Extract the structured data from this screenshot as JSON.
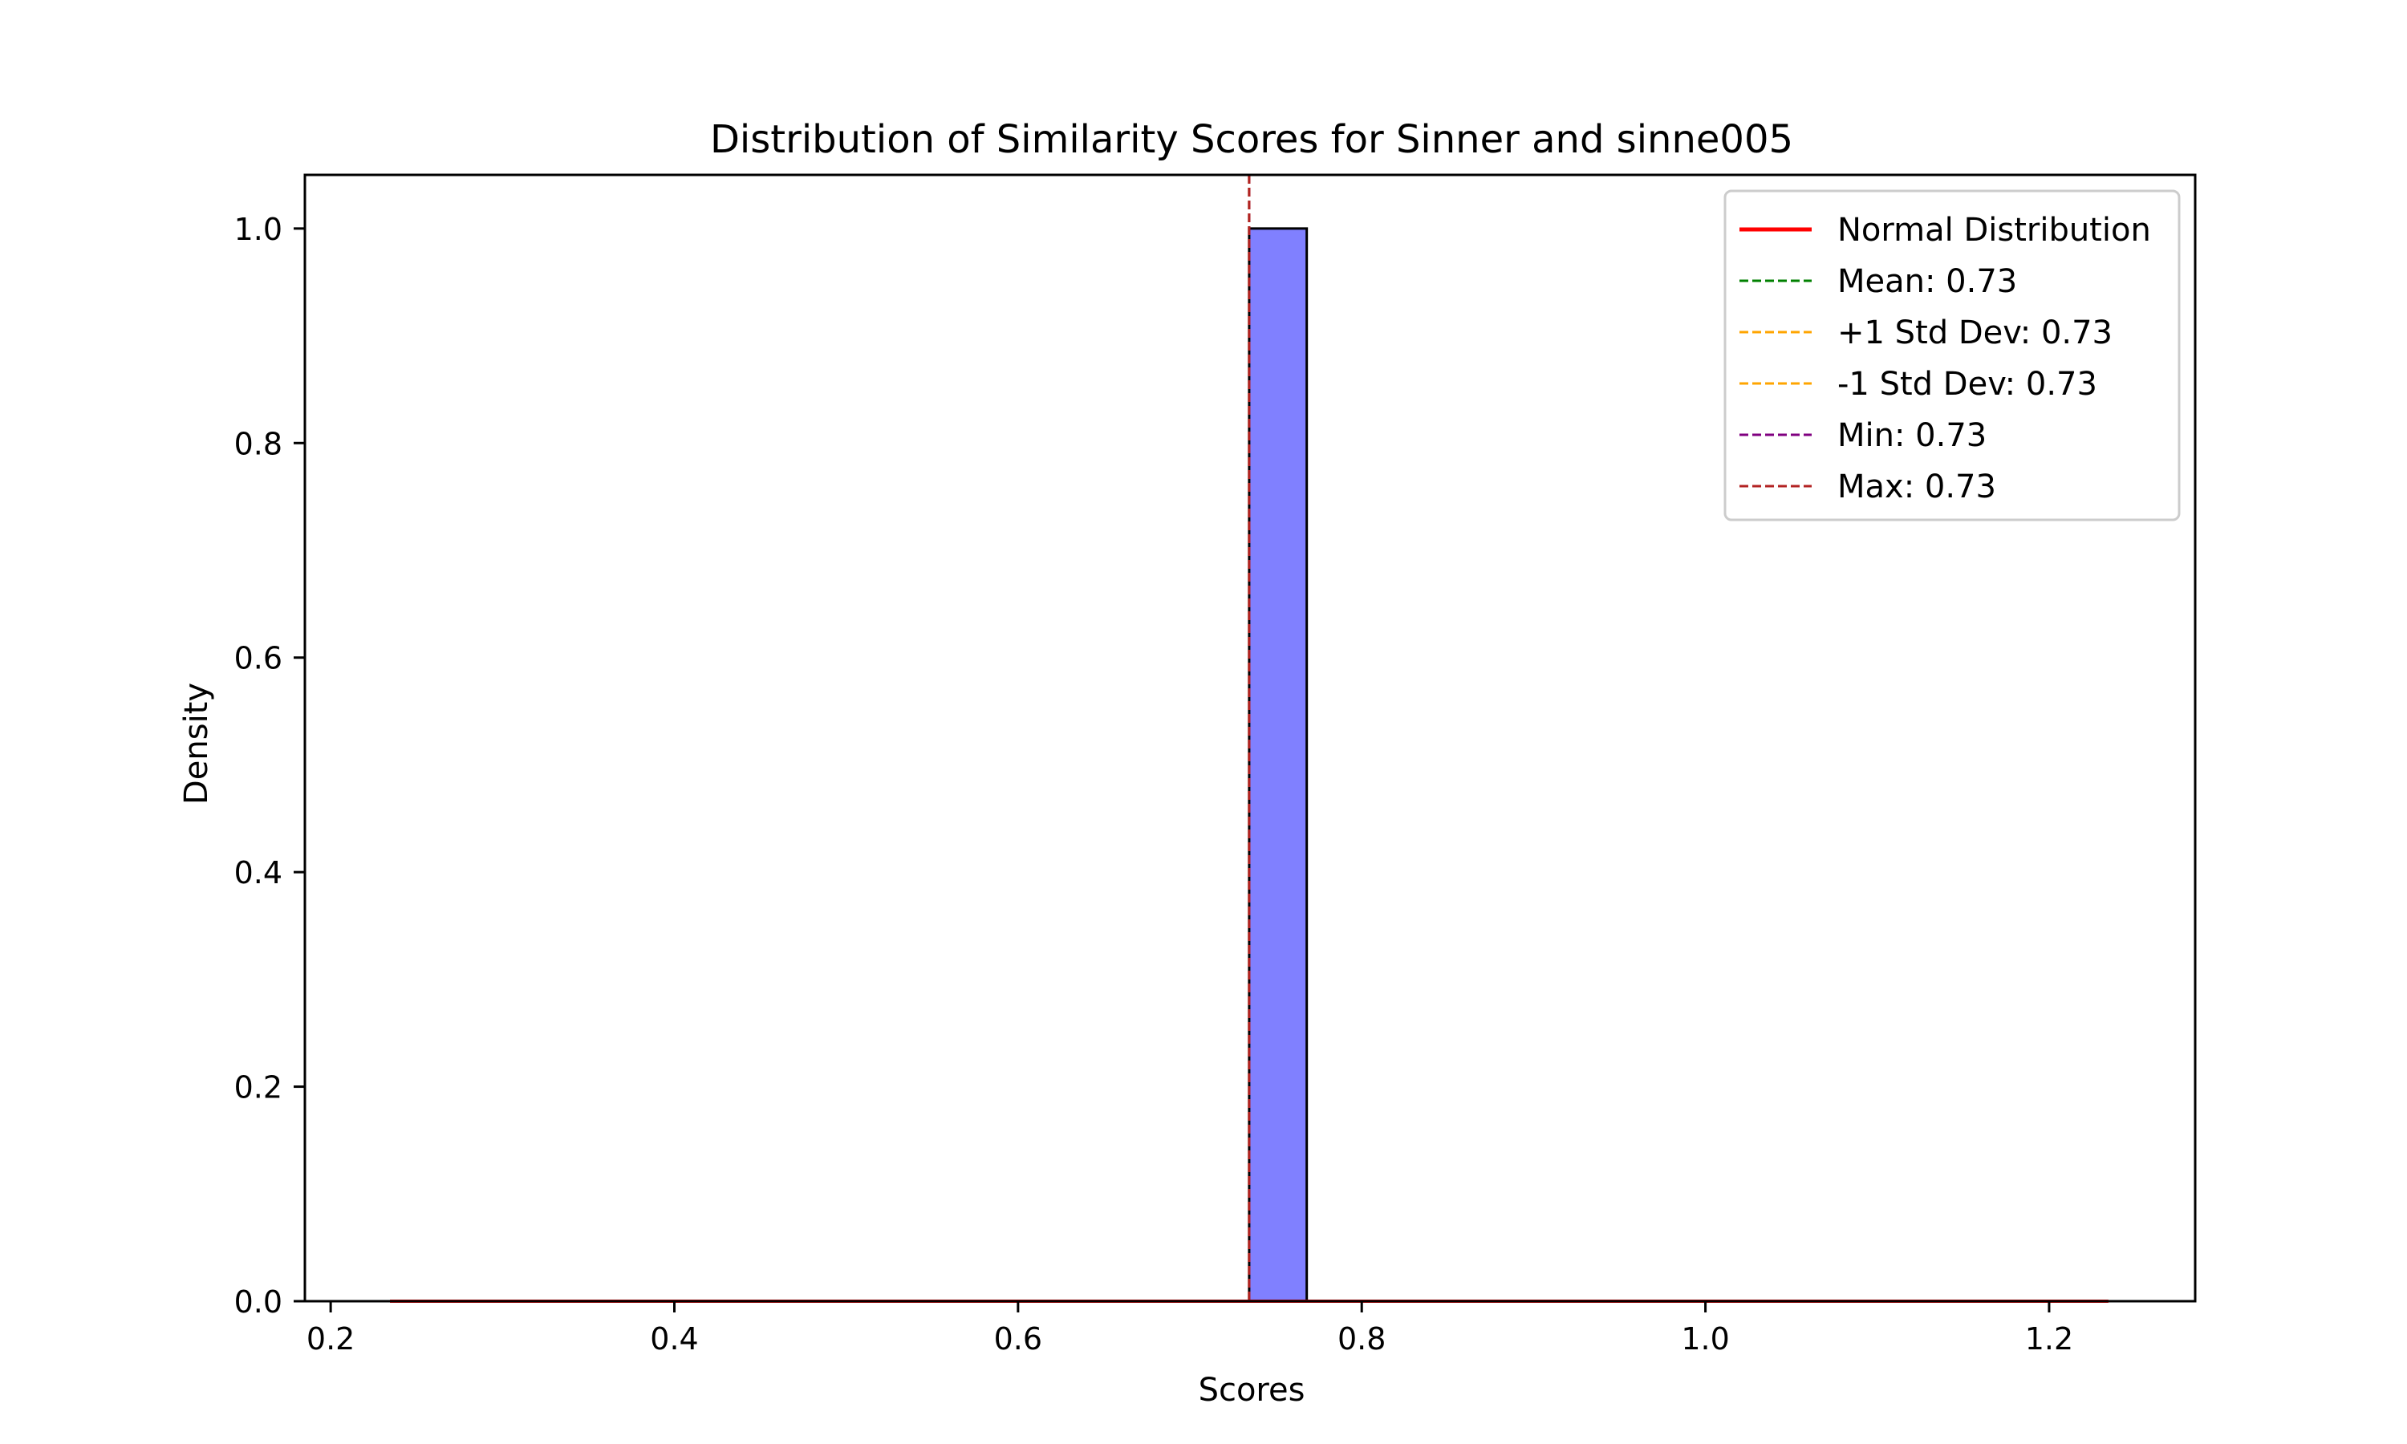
{
  "chart_data": {
    "type": "bar",
    "title": "Distribution of Similarity Scores for Sinner and sinne005",
    "xlabel": "Scores",
    "ylabel": "Density",
    "xlim": [
      0.185,
      1.285
    ],
    "ylim": [
      0,
      1.05
    ],
    "xticks": [
      0.2,
      0.4,
      0.6,
      0.8,
      1.0,
      1.2
    ],
    "xtick_labels": [
      "0.2",
      "0.4",
      "0.6",
      "0.8",
      "1.0",
      "1.2"
    ],
    "yticks": [
      0.0,
      0.2,
      0.4,
      0.6,
      0.8,
      1.0
    ],
    "ytick_labels": [
      "0.0",
      "0.2",
      "0.4",
      "0.6",
      "0.8",
      "1.0"
    ],
    "grid": false,
    "bars": [
      {
        "x0": 0.7345,
        "x1": 0.768,
        "density": 1.0
      }
    ],
    "normal_distribution_line": {
      "label": "Normal Distribution",
      "color": "#ff0000",
      "x": [
        0.2345,
        1.2345
      ],
      "y": [
        0.0,
        0.0
      ]
    },
    "vertical_lines": [
      {
        "label": "Mean: 0.73",
        "x": 0.7345,
        "color": "#008000",
        "style": "dashed"
      },
      {
        "label": "+1 Std Dev: 0.73",
        "x": 0.7345,
        "color": "#ffa500",
        "style": "dashed"
      },
      {
        "label": "-1 Std Dev: 0.73",
        "x": 0.7345,
        "color": "#ffa500",
        "style": "dashed"
      },
      {
        "label": "Min: 0.73",
        "x": 0.7345,
        "color": "#800080",
        "style": "dashed"
      },
      {
        "label": "Max: 0.73",
        "x": 0.7345,
        "color": "#b22222",
        "style": "dashed"
      }
    ],
    "bar_fill_color": "#8080ff",
    "bar_edge_color": "#000000",
    "legend_position": "upper right",
    "legend_entries": [
      {
        "label": "Normal Distribution",
        "color": "#ff0000",
        "style": "solid"
      },
      {
        "label": "Mean: 0.73",
        "color": "#008000",
        "style": "dashed"
      },
      {
        "label": "+1 Std Dev: 0.73",
        "color": "#ffa500",
        "style": "dashed"
      },
      {
        "label": "-1 Std Dev: 0.73",
        "color": "#ffa500",
        "style": "dashed"
      },
      {
        "label": "Min: 0.73",
        "color": "#800080",
        "style": "dashed"
      },
      {
        "label": "Max: 0.73",
        "color": "#b22222",
        "style": "dashed"
      }
    ]
  }
}
